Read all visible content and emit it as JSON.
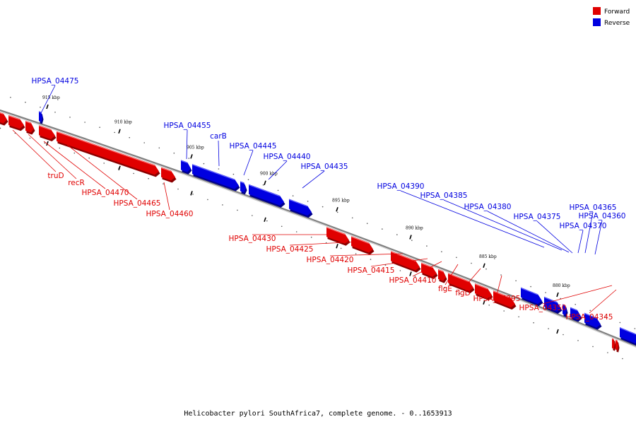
{
  "colors": {
    "forward": "#e00000",
    "forward_dark": "#8a0000",
    "forward_top": "#ff6a6a",
    "reverse": "#0000e0",
    "reverse_dark": "#00008a",
    "reverse_top": "#6a6aff",
    "backbone": "#808080"
  },
  "legend": {
    "forward": "Forward",
    "reverse": "Reverse"
  },
  "caption": "Helicobacter pylori SouthAfrica7, complete genome. - 0..1653913",
  "scale": {
    "ticks": [
      "915 kbp",
      "910 kbp",
      "905 kbp",
      "900 kbp",
      "895 kbp",
      "890 kbp",
      "885 kbp",
      "880 kbp"
    ]
  },
  "genes": {
    "forward": [
      "truD",
      "recR",
      "HPSA_04470",
      "HPSA_04465",
      "HPSA_04460",
      "HPSA_04430",
      "HPSA_04425",
      "HPSA_04420",
      "HPSA_04415",
      "HPSA_04410",
      "flgE",
      "flgD",
      "HPSA_04395",
      "HPSA_04350",
      "HPSA_04345"
    ],
    "reverse": [
      "HPSA_04475",
      "HPSA_04455",
      "carB",
      "HPSA_04445",
      "HPSA_04440",
      "HPSA_04435",
      "HPSA_04390",
      "HPSA_04385",
      "HPSA_04380",
      "HPSA_04375",
      "HPSA_04365",
      "HPSA_04360",
      "HPSA_04370"
    ]
  }
}
